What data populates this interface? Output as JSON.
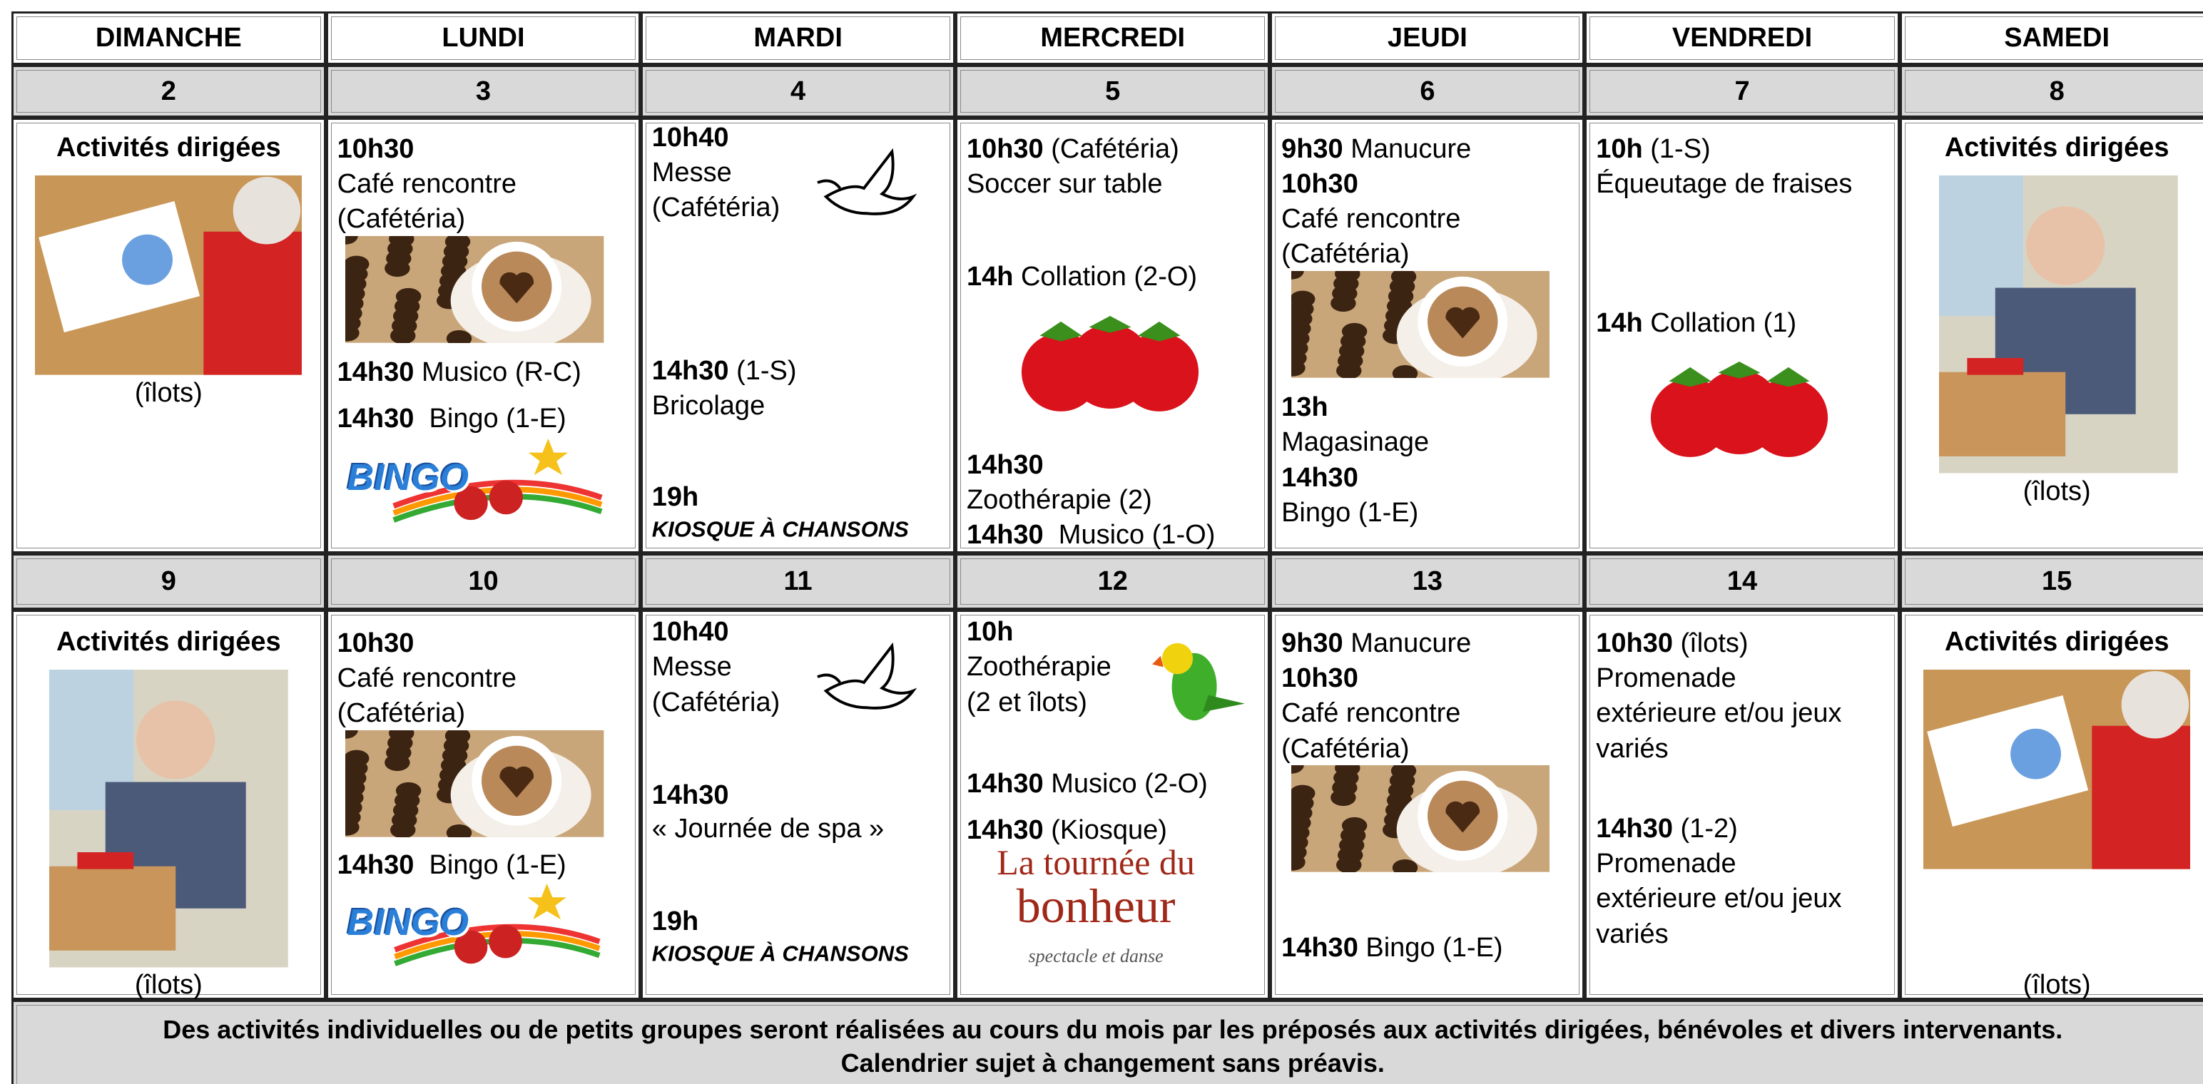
{
  "days": [
    "DIMANCHE",
    "LUNDI",
    "MARDI",
    "MERCREDI",
    "JEUDI",
    "VENDREDI",
    "SAMEDI"
  ],
  "weeks": [
    {
      "dates": [
        "2",
        "3",
        "4",
        "5",
        "6",
        "7",
        "8"
      ],
      "cells": [
        [
          {
            "text": "Activités dirigées"
          },
          {
            "text": "(îlots)"
          }
        ],
        [
          {
            "time": "10h30"
          },
          {
            "text": "Café rencontre"
          },
          {
            "text": "(Cafétéria)"
          },
          {
            "time": "14h30",
            "text": " Musico (R-C)"
          },
          {
            "time": "14h30",
            "text": "  Bingo (1-E)"
          }
        ],
        [
          {
            "time": "10h40"
          },
          {
            "text": "Messe"
          },
          {
            "text": "(Cafétéria)"
          },
          {
            "time": "14h30",
            "text": " (1-S)"
          },
          {
            "text": "Bricolage"
          },
          {
            "time": "19h"
          },
          {
            "text": "KIOSQUE À CHANSONS"
          }
        ],
        [
          {
            "time": "10h30",
            "text": " (Cafétéria)"
          },
          {
            "text": "Soccer sur table"
          },
          {
            "time": "14h",
            "text": " Collation (2-O)"
          },
          {
            "time": "14h30"
          },
          {
            "text": "Zoothérapie (2)"
          },
          {
            "time": "14h30",
            "text": "  Musico (1-O)"
          }
        ],
        [
          {
            "time": "9h30",
            "text": " Manucure"
          },
          {
            "time": "10h30"
          },
          {
            "text": "Café rencontre"
          },
          {
            "text": "(Cafétéria)"
          },
          {
            "time": "13h"
          },
          {
            "text": "Magasinage"
          },
          {
            "time": "14h30"
          },
          {
            "text": "Bingo (1-E)"
          }
        ],
        [
          {
            "time": "10h",
            "text": " (1-S)"
          },
          {
            "text": "Équeutage de fraises"
          },
          {
            "time": "14h",
            "text": " Collation (1)"
          }
        ],
        [
          {
            "text": "Activités dirigées"
          },
          {
            "text": "(îlots)"
          }
        ]
      ]
    },
    {
      "dates": [
        "9",
        "10",
        "11",
        "12",
        "13",
        "14",
        "15"
      ],
      "cells": [
        [
          {
            "text": "Activités dirigées"
          },
          {
            "text": "(îlots)"
          }
        ],
        [
          {
            "time": "10h30"
          },
          {
            "text": "Café rencontre"
          },
          {
            "text": "(Cafétéria)"
          },
          {
            "time": "14h30",
            "text": "  Bingo (1-E)"
          }
        ],
        [
          {
            "time": "10h40"
          },
          {
            "text": "Messe"
          },
          {
            "text": "(Cafétéria)"
          },
          {
            "time": "14h30"
          },
          {
            "text": "« Journée de spa »"
          },
          {
            "time": "19h"
          },
          {
            "text": "KIOSQUE À CHANSONS"
          }
        ],
        [
          {
            "time": "10h"
          },
          {
            "text": "Zoothérapie"
          },
          {
            "text": "(2 et îlots)"
          },
          {
            "time": "14h30",
            "text": " Musico (2-O)"
          },
          {
            "time": "14h30",
            "text": " (Kiosque)"
          }
        ],
        [
          {
            "time": "9h30",
            "text": " Manucure"
          },
          {
            "time": "10h30"
          },
          {
            "text": "Café rencontre"
          },
          {
            "text": "(Cafétéria)"
          },
          {
            "time": "14h30",
            "text": " Bingo (1-E)"
          }
        ],
        [
          {
            "time": "10h30",
            "text": " (îlots)"
          },
          {
            "text": "Promenade"
          },
          {
            "text": "extérieure et/ou jeux"
          },
          {
            "text": "variés"
          },
          {
            "time": "14h30",
            "text": " (1-2)"
          },
          {
            "text": "Promenade"
          },
          {
            "text": "extérieure et/ou jeux"
          },
          {
            "text": "variés"
          }
        ],
        [
          {
            "text": "Activités dirigées"
          },
          {
            "text": "(îlots)"
          }
        ]
      ]
    }
  ],
  "image_texts": {
    "bingo": "BINGO",
    "tournee": [
      "La tournée du",
      "bonheur",
      "spectacle et danse"
    ]
  },
  "footer": [
    "Des activités individuelles ou de petits groupes seront réalisées au cours du mois par les préposés aux activités dirigées, bénévoles et divers intervenants.",
    "Calendrier sujet à changement sans préavis."
  ]
}
